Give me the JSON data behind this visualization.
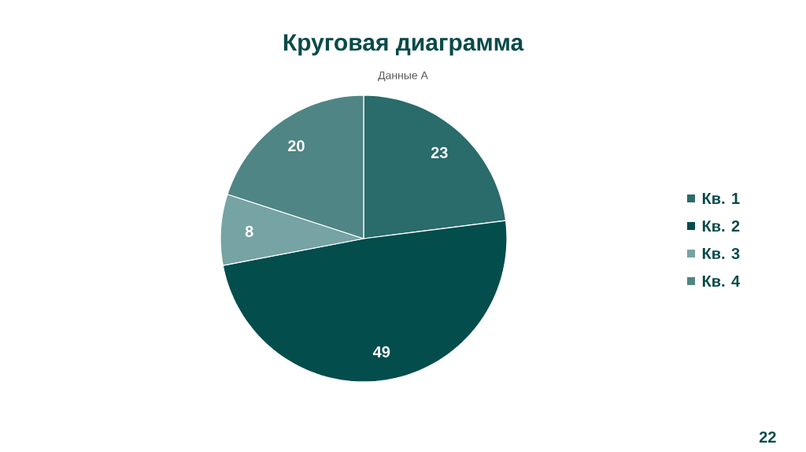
{
  "chart_data": {
    "type": "pie",
    "title": "Круговая диаграмма",
    "subtitle": "Данные А",
    "categories": [
      "Кв. 1",
      "Кв. 2",
      "Кв. 3",
      "Кв. 4"
    ],
    "values": [
      23,
      49,
      8,
      20
    ],
    "colors": [
      "#2a6b6b",
      "#034d4d",
      "#76a3a3",
      "#4f8585"
    ],
    "data_labels": true,
    "legend": "right",
    "annotations": [
      "22"
    ]
  }
}
